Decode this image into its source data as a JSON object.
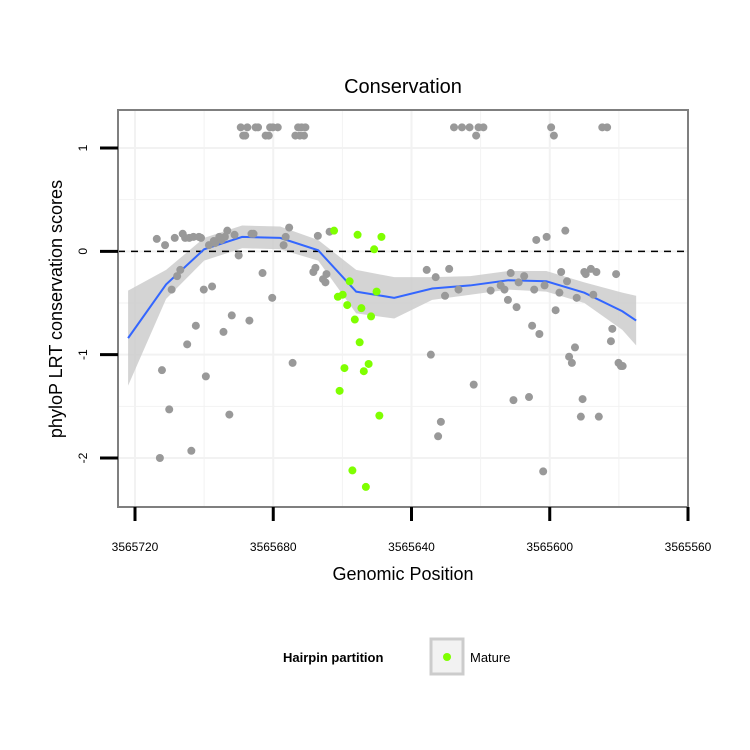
{
  "chart_data": {
    "type": "scatter",
    "title": "Conservation",
    "xlabel": "Genomic Position",
    "ylabel": "phyloP LRT conservation scores",
    "x_reversed": true,
    "xlim": [
      3565722,
      3565558
    ],
    "ylim": [
      -2.45,
      1.35
    ],
    "x_ticks": [
      3565720,
      3565680,
      3565640,
      3565600,
      3565560
    ],
    "x_tick_labels": [
      "3565720",
      "3565680",
      "3565640",
      "3565600",
      "3565560"
    ],
    "y_ticks": [
      1,
      0,
      -1,
      -2
    ],
    "y_tick_labels": [
      "1",
      "0",
      "-1",
      "-2"
    ],
    "reference_line": {
      "y": 0,
      "style": "dashed"
    },
    "grid": true,
    "colors": {
      "other": "#999999",
      "mature": "#7fff00",
      "smooth": "#3366ff",
      "ribbon": "#cccccc",
      "panel_border": "#7f7f7f",
      "grid": "#f2f2f2"
    },
    "legend": {
      "title": "Hairpin partition",
      "position": "bottom",
      "entries": [
        "Mature"
      ]
    },
    "series": [
      {
        "name": "",
        "color": "#999999",
        "points": [
          [
            3565713.7,
            0.12
          ],
          [
            3565712.8,
            -2
          ],
          [
            3565712.2,
            -1.15
          ],
          [
            3565711.3,
            0.06
          ],
          [
            3565710.1,
            -1.53
          ],
          [
            3565709.4,
            -0.37
          ],
          [
            3565708.5,
            0.13
          ],
          [
            3565707.8,
            -0.24
          ],
          [
            3565706.9,
            -0.18
          ],
          [
            3565706.2,
            0.17
          ],
          [
            3565705.5,
            0.13
          ],
          [
            3565704.9,
            -0.9
          ],
          [
            3565704.3,
            0.13
          ],
          [
            3565703.7,
            -1.93
          ],
          [
            3565703.1,
            0.14
          ],
          [
            3565702.4,
            -0.72
          ],
          [
            3565701.5,
            0.14
          ],
          [
            3565700.9,
            0.13
          ],
          [
            3565700.1,
            -0.37
          ],
          [
            3565699.5,
            -1.21
          ],
          [
            3565698.6,
            0.06
          ],
          [
            3565697.7,
            -0.34
          ],
          [
            3565697.2,
            0.1
          ],
          [
            3565696.8,
            0.08
          ],
          [
            3565695.6,
            0.14
          ],
          [
            3565695.0,
            0.11
          ],
          [
            3565694.4,
            -0.78
          ],
          [
            3565694.0,
            0.14
          ],
          [
            3565693.3,
            0.2
          ],
          [
            3565692.7,
            -1.58
          ],
          [
            3565692.0,
            -0.62
          ],
          [
            3565691.2,
            0.16
          ],
          [
            3565690.0,
            -0.04
          ],
          [
            3565689.4,
            1.2
          ],
          [
            3565688.7,
            1.12
          ],
          [
            3565688.1,
            1.12
          ],
          [
            3565687.5,
            1.2
          ],
          [
            3565686.9,
            -0.67
          ],
          [
            3565686.3,
            0.17
          ],
          [
            3565685.7,
            0.17
          ],
          [
            3565685.1,
            1.2
          ],
          [
            3565684.4,
            1.2
          ],
          [
            3565683.1,
            -0.21
          ],
          [
            3565682.2,
            1.12
          ],
          [
            3565681.3,
            1.12
          ],
          [
            3565680.9,
            1.2
          ],
          [
            3565680.3,
            -0.45
          ],
          [
            3565680.1,
            1.2
          ],
          [
            3565678.7,
            1.2
          ],
          [
            3565677.0,
            0.06
          ],
          [
            3565676.4,
            0.14
          ],
          [
            3565675.4,
            0.23
          ],
          [
            3565674.4,
            -1.08
          ],
          [
            3565673.6,
            1.12
          ],
          [
            3565672.8,
            1.2
          ],
          [
            3565672.3,
            1.12
          ],
          [
            3565671.8,
            1.2
          ],
          [
            3565671.1,
            1.12
          ],
          [
            3565670.7,
            1.2
          ],
          [
            3565668.4,
            -0.2
          ],
          [
            3565667.8,
            -0.16
          ],
          [
            3565667.1,
            0.15
          ],
          [
            3565665.6,
            -0.27
          ],
          [
            3565664.9,
            -0.3
          ],
          [
            3565664.6,
            -0.22
          ],
          [
            3565663.7,
            0.19
          ],
          [
            3565635.6,
            -0.18
          ],
          [
            3565634.4,
            -1.0
          ],
          [
            3565633.0,
            -0.25
          ],
          [
            3565632.3,
            -1.79
          ],
          [
            3565631.5,
            -1.65
          ],
          [
            3565630.3,
            -0.43
          ],
          [
            3565629.1,
            -0.17
          ],
          [
            3565627.7,
            1.2
          ],
          [
            3565626.4,
            -0.37
          ],
          [
            3565625.4,
            1.2
          ],
          [
            3565623.2,
            1.2
          ],
          [
            3565622.0,
            -1.29
          ],
          [
            3565621.3,
            1.12
          ],
          [
            3565620.6,
            1.2
          ],
          [
            3565619.2,
            1.2
          ],
          [
            3565617.1,
            -0.38
          ],
          [
            3565614.2,
            -0.33
          ],
          [
            3565613.1,
            -0.37
          ],
          [
            3565612.1,
            -0.47
          ],
          [
            3565611.3,
            -0.21
          ],
          [
            3565610.5,
            -1.44
          ],
          [
            3565609.6,
            -0.54
          ],
          [
            3565609.0,
            -0.3
          ],
          [
            3565607.4,
            -0.24
          ],
          [
            3565606.0,
            -1.41
          ],
          [
            3565605.1,
            -0.72
          ],
          [
            3565604.5,
            -0.37
          ],
          [
            3565603.9,
            0.11
          ],
          [
            3565603.0,
            -0.8
          ],
          [
            3565601.9,
            -2.13
          ],
          [
            3565601.5,
            -0.33
          ],
          [
            3565600.9,
            0.14
          ],
          [
            3565599.6,
            1.2
          ],
          [
            3565598.8,
            1.12
          ],
          [
            3565598.3,
            -0.57
          ],
          [
            3565597.2,
            -0.4
          ],
          [
            3565596.7,
            -0.2
          ],
          [
            3565595.5,
            0.2
          ],
          [
            3565595.0,
            -0.29
          ],
          [
            3565594.4,
            -1.02
          ],
          [
            3565593.6,
            -1.08
          ],
          [
            3565592.7,
            -0.93
          ],
          [
            3565592.2,
            -0.45
          ],
          [
            3565591.0,
            -1.6
          ],
          [
            3565590.5,
            -1.43
          ],
          [
            3565590.0,
            -0.2
          ],
          [
            3565589.6,
            -0.22
          ],
          [
            3565588.1,
            -0.17
          ],
          [
            3565587.4,
            -0.42
          ],
          [
            3565586.5,
            -0.2
          ],
          [
            3565585.8,
            -1.6
          ],
          [
            3565584.8,
            1.2
          ],
          [
            3565583.4,
            1.2
          ],
          [
            3565582.3,
            -0.87
          ],
          [
            3565581.9,
            -0.75
          ],
          [
            3565580.8,
            -0.22
          ],
          [
            3565580.1,
            -1.08
          ],
          [
            3565579.4,
            -1.11
          ],
          [
            3565578.9,
            -1.11
          ]
        ]
      },
      {
        "name": "Mature",
        "color": "#7fff00",
        "points": [
          [
            3565662.4,
            0.2
          ],
          [
            3565661.3,
            -0.44
          ],
          [
            3565660.8,
            -1.35
          ],
          [
            3565659.9,
            -0.42
          ],
          [
            3565659.4,
            -1.13
          ],
          [
            3565658.6,
            -0.52
          ],
          [
            3565657.9,
            -0.29
          ],
          [
            3565657.1,
            -2.12
          ],
          [
            3565656.4,
            -0.66
          ],
          [
            3565655.6,
            0.16
          ],
          [
            3565655.0,
            -0.88
          ],
          [
            3565654.5,
            -0.55
          ],
          [
            3565653.8,
            -1.16
          ],
          [
            3565653.2,
            -2.28
          ],
          [
            3565652.4,
            -1.09
          ],
          [
            3565651.7,
            -0.63
          ],
          [
            3565650.8,
            0.02
          ],
          [
            3565650.1,
            -0.39
          ],
          [
            3565649.3,
            -1.59
          ],
          [
            3565648.7,
            0.14
          ]
        ]
      }
    ],
    "smooth": [
      [
        3565722,
        -0.84
      ],
      [
        3565711,
        -0.32
      ],
      [
        3565700,
        0.02
      ],
      [
        3565689,
        0.14
      ],
      [
        3565678,
        0.13
      ],
      [
        3565667,
        0.01
      ],
      [
        3565656,
        -0.39
      ],
      [
        3565645,
        -0.45
      ],
      [
        3565634,
        -0.36
      ],
      [
        3565623,
        -0.33
      ],
      [
        3565612,
        -0.28
      ],
      [
        3565601,
        -0.29
      ],
      [
        3565590,
        -0.4
      ],
      [
        3565579,
        -0.58
      ],
      [
        3565575,
        -0.67
      ]
    ],
    "ribbon_lower": [
      [
        3565722,
        -1.3
      ],
      [
        3565711,
        -0.46
      ],
      [
        3565700,
        -0.09
      ],
      [
        3565689,
        0.03
      ],
      [
        3565678,
        0.02
      ],
      [
        3565667,
        -0.09
      ],
      [
        3565656,
        -0.6
      ],
      [
        3565645,
        -0.65
      ],
      [
        3565634,
        -0.47
      ],
      [
        3565623,
        -0.42
      ],
      [
        3565612,
        -0.37
      ],
      [
        3565601,
        -0.39
      ],
      [
        3565590,
        -0.5
      ],
      [
        3565579,
        -0.76
      ],
      [
        3565575,
        -0.91
      ]
    ],
    "ribbon_upper": [
      [
        3565722,
        -0.38
      ],
      [
        3565711,
        -0.18
      ],
      [
        3565700,
        0.13
      ],
      [
        3565689,
        0.25
      ],
      [
        3565678,
        0.24
      ],
      [
        3565667,
        0.11
      ],
      [
        3565656,
        -0.18
      ],
      [
        3565645,
        -0.25
      ],
      [
        3565634,
        -0.25
      ],
      [
        3565623,
        -0.24
      ],
      [
        3565612,
        -0.19
      ],
      [
        3565601,
        -0.19
      ],
      [
        3565590,
        -0.3
      ],
      [
        3565579,
        -0.4
      ],
      [
        3565575,
        -0.43
      ]
    ]
  }
}
